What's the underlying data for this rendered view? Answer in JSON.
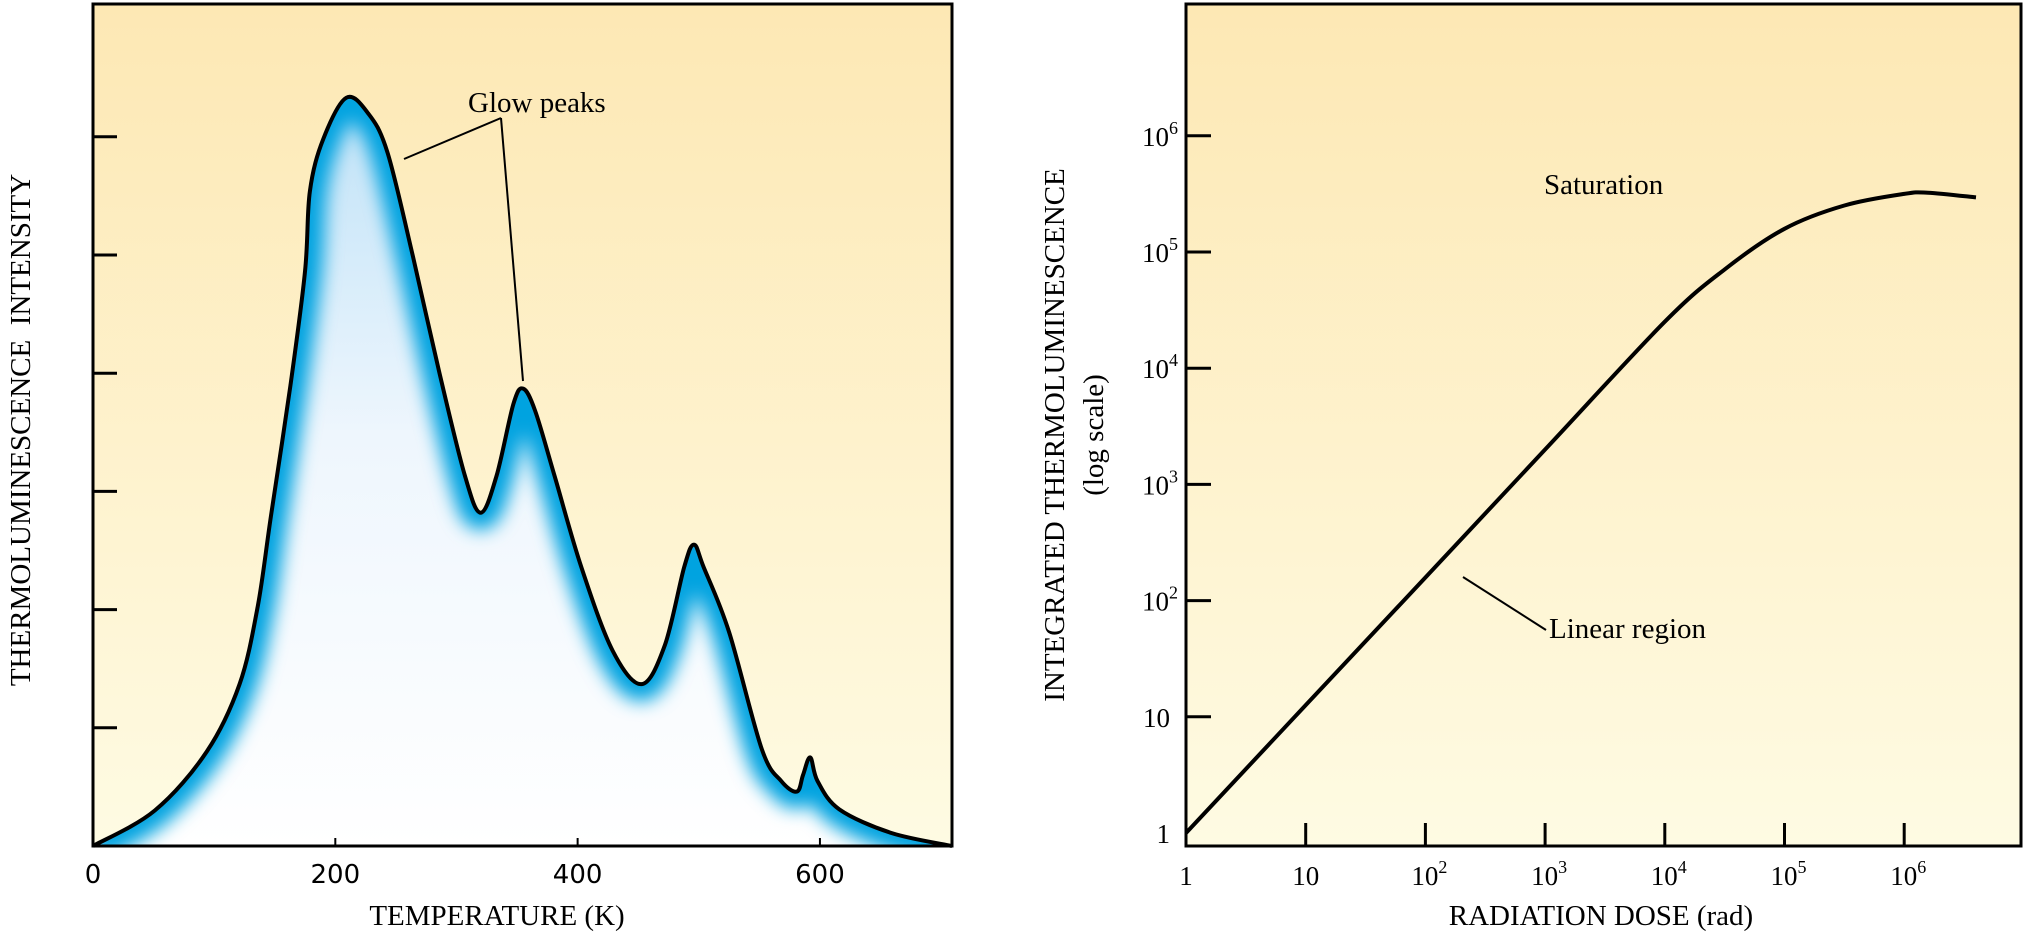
{
  "colors": {
    "bg_top": "#fde8b4",
    "bg_bottom": "#fefbe3",
    "glow_blue": "#00a3e0",
    "line": "#000000"
  },
  "chart_data": [
    {
      "type": "area",
      "xlabel": "TEMPERATURE (K)",
      "ylabel": "THERMOLUMINESCENCE  INTENSITY",
      "xlim": [
        0,
        709
      ],
      "ylim": [
        0,
        7.1
      ],
      "x_ticks": [
        0,
        200,
        400,
        600
      ],
      "x_tick_labels": [
        "0",
        "200",
        "400",
        "600"
      ],
      "y_ticks": [
        1,
        2,
        3,
        4,
        5,
        6
      ],
      "y_tick_labels_shown": false,
      "grid": false,
      "annotation": {
        "text": "Glow peaks",
        "points_to": [
          [
            209,
            6.33
          ],
          [
            355,
            3.87
          ]
        ]
      },
      "x": [
        0,
        51,
        94,
        121,
        136,
        147,
        163,
        175,
        179,
        190,
        209,
        227,
        243,
        264,
        286,
        307,
        320,
        333,
        347,
        355,
        365,
        381,
        403,
        429,
        453,
        472,
        488,
        496,
        504,
        525,
        552,
        568,
        581,
        586,
        592,
        598,
        616,
        659,
        709
      ],
      "y": [
        0,
        0.3,
        0.8,
        1.37,
        2.03,
        2.8,
        3.9,
        4.86,
        5.54,
        5.98,
        6.33,
        6.2,
        5.87,
        4.99,
        4.0,
        3.13,
        2.82,
        3.13,
        3.74,
        3.87,
        3.68,
        3.13,
        2.36,
        1.65,
        1.37,
        1.7,
        2.36,
        2.55,
        2.36,
        1.81,
        0.82,
        0.55,
        0.46,
        0.6,
        0.75,
        0.55,
        0.31,
        0.11,
        0
      ]
    },
    {
      "type": "line",
      "xlabel": "RADIATION DOSE (rad)",
      "ylabel": "INTEGRATED THERMOLUMINESCENCE",
      "ylabel_sub": "(log scale)",
      "x_scale": "log",
      "y_scale": "log",
      "xlim": [
        1,
        10000000
      ],
      "ylim": [
        0.8,
        13000000
      ],
      "x_tick_labels": [
        {
          "base": "1",
          "exp": ""
        },
        {
          "base": "10",
          "exp": ""
        },
        {
          "base": "10",
          "exp": "2"
        },
        {
          "base": "10",
          "exp": "3"
        },
        {
          "base": "10",
          "exp": "4"
        },
        {
          "base": "10",
          "exp": "5"
        },
        {
          "base": "10",
          "exp": "6"
        }
      ],
      "y_tick_labels": [
        {
          "base": "1",
          "exp": ""
        },
        {
          "base": "10",
          "exp": ""
        },
        {
          "base": "10",
          "exp": "2"
        },
        {
          "base": "10",
          "exp": "3"
        },
        {
          "base": "10",
          "exp": "4"
        },
        {
          "base": "10",
          "exp": "5"
        },
        {
          "base": "10",
          "exp": "6"
        }
      ],
      "grid": false,
      "annotations": [
        {
          "text": "Saturation"
        },
        {
          "text": "Linear region"
        }
      ],
      "x": [
        1,
        10,
        100,
        1000,
        10000,
        31623,
        100000,
        316228,
        1000000,
        1584893,
        3981072
      ],
      "y": [
        1,
        12.6,
        158,
        1995,
        25119,
        70795,
        158489,
        251189,
        316228,
        323594,
        295121
      ]
    }
  ]
}
